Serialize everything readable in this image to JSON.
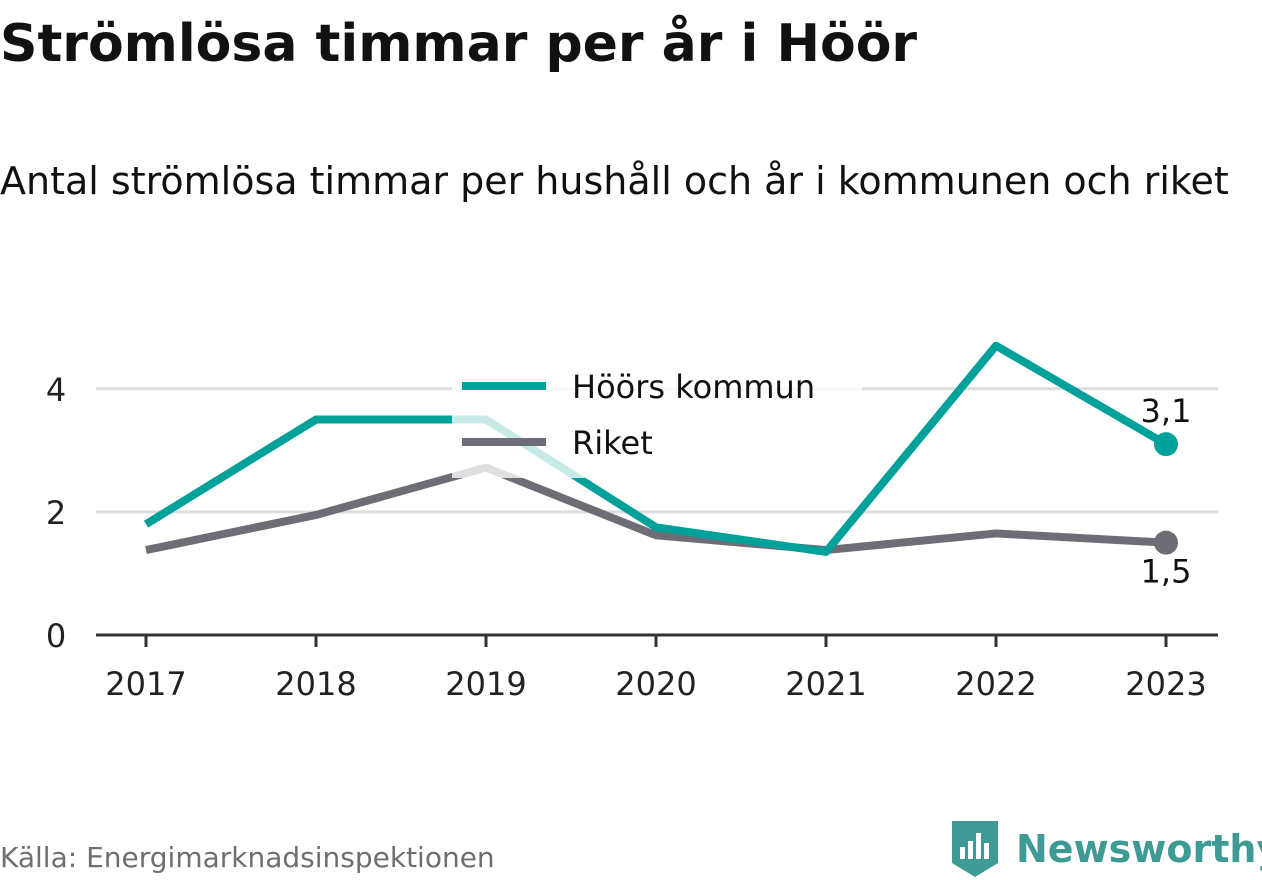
{
  "title": "Strömlösa timmar per år i Höör",
  "subtitle": "Antal strömlösa timmar per hushåll och år i kommunen och riket",
  "source": "Källa: Energimarknadsinspektionen",
  "brand": {
    "name": "Newsworthy",
    "icon": "newsworthy-logo-icon",
    "color": "#3d9a94"
  },
  "chart_data": {
    "type": "line",
    "title": "Strömlösa timmar per år i Höör",
    "subtitle": "Antal strömlösa timmar per hushåll och år i kommunen och riket",
    "xlabel": "",
    "ylabel": "",
    "x": [
      "2017",
      "2018",
      "2019",
      "2020",
      "2021",
      "2022",
      "2023"
    ],
    "ylim": [
      0,
      4.5
    ],
    "yticks": [
      0,
      2,
      4
    ],
    "ytick_labels": [
      "0",
      "2",
      "4"
    ],
    "grid": true,
    "legend_position": "top-center",
    "series": [
      {
        "name": "Höörs kommun",
        "color": "#00a19a",
        "values": [
          1.8,
          3.5,
          3.5,
          1.75,
          1.35,
          4.7,
          3.1
        ],
        "end_label": "3,1"
      },
      {
        "name": "Riket",
        "color": "#6e6d75",
        "values": [
          1.38,
          1.95,
          2.72,
          1.62,
          1.38,
          1.65,
          1.5
        ],
        "end_label": "1,5"
      }
    ]
  }
}
